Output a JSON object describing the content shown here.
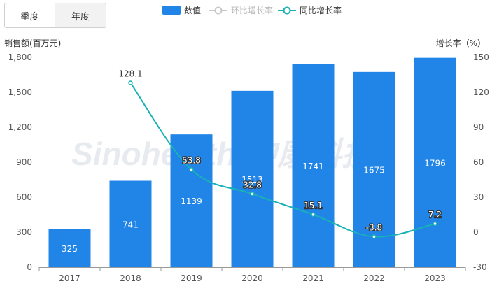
{
  "tabs": [
    {
      "label": "季度",
      "active": false
    },
    {
      "label": "年度",
      "active": true
    }
  ],
  "legend": {
    "bar": "数值",
    "qoq": "环比增长率",
    "yoy": "同比增长率"
  },
  "watermark": "Sinohealth 中康科技",
  "colors": {
    "bar": "#2185e8",
    "yoy_line": "#17b1b6",
    "qoq_line": "#c8c8c8",
    "axis_text": "#555555",
    "grid": "#e6e6e6"
  },
  "chart_data": {
    "type": "bar",
    "categories": [
      "2017",
      "2018",
      "2019",
      "2020",
      "2021",
      "2022",
      "2023"
    ],
    "series": [
      {
        "name": "数值",
        "type": "bar",
        "axis": "left",
        "values": [
          325,
          741,
          1139,
          1513,
          1741,
          1675,
          1796
        ]
      },
      {
        "name": "同比增长率",
        "type": "line",
        "axis": "right",
        "values": [
          null,
          128.1,
          53.8,
          32.8,
          15.1,
          -3.8,
          7.2
        ]
      }
    ],
    "ylabel": "销售额(百万元)",
    "ylabel_right": "增长率（%）",
    "ylim": [
      0,
      1800
    ],
    "yticks": [
      "0",
      "300",
      "600",
      "900",
      "1,200",
      "1,500",
      "1,800"
    ],
    "ylim_right": [
      -30,
      150
    ],
    "yticks_right": [
      "-30",
      "0",
      "30",
      "60",
      "90",
      "120",
      "150"
    ],
    "legend_position": "top-center",
    "grid": false
  }
}
